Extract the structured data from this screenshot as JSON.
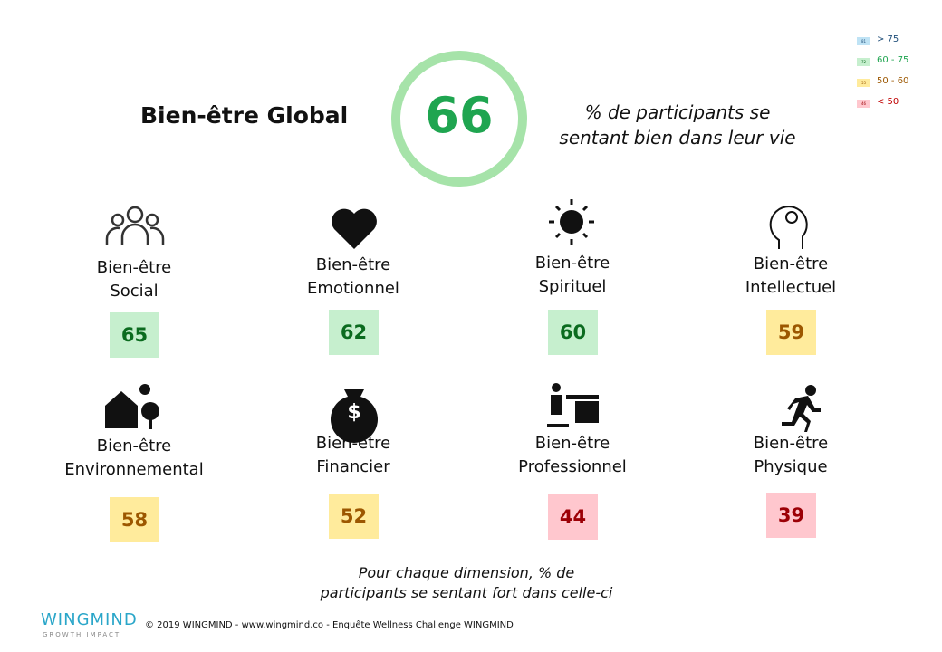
{
  "header": {
    "title": "Bien-être Global",
    "score": "66",
    "description": [
      "% de participants se",
      "sentant bien dans leur vie"
    ]
  },
  "legend": [
    {
      "swatch": "81",
      "label": "> 75"
    },
    {
      "swatch": "72",
      "label": "60 - 75"
    },
    {
      "swatch": "55",
      "label": "50 - 60"
    },
    {
      "swatch": "46",
      "label": "< 50"
    }
  ],
  "dimensions": [
    {
      "label": [
        "Bien-être",
        "Social"
      ],
      "value": "65"
    },
    {
      "label": [
        "Bien-être",
        "Emotionnel"
      ],
      "value": "62"
    },
    {
      "label": [
        "Bien-être",
        "Spirituel"
      ],
      "value": "60"
    },
    {
      "label": [
        "Bien-être",
        "Intellectuel"
      ],
      "value": "59"
    },
    {
      "label": [
        "Bien-être",
        "Environnemental"
      ],
      "value": "58"
    },
    {
      "label": [
        "Bien-être",
        "Financier"
      ],
      "value": "52"
    },
    {
      "label": [
        "Bien-être",
        "Professionnel"
      ],
      "value": "44"
    },
    {
      "label": [
        "Bien-être",
        "Physique"
      ],
      "value": "39"
    }
  ],
  "note": [
    "Pour chaque dimension, % de",
    "participants se sentant fort dans celle-ci"
  ],
  "footer": {
    "logo": "WINGMIND",
    "tagline": "GROWTH IMPACT",
    "copyright": "© 2019 WINGMIND -  www.wingmind.co  - Enquête Wellness Challenge WINGMIND"
  }
}
